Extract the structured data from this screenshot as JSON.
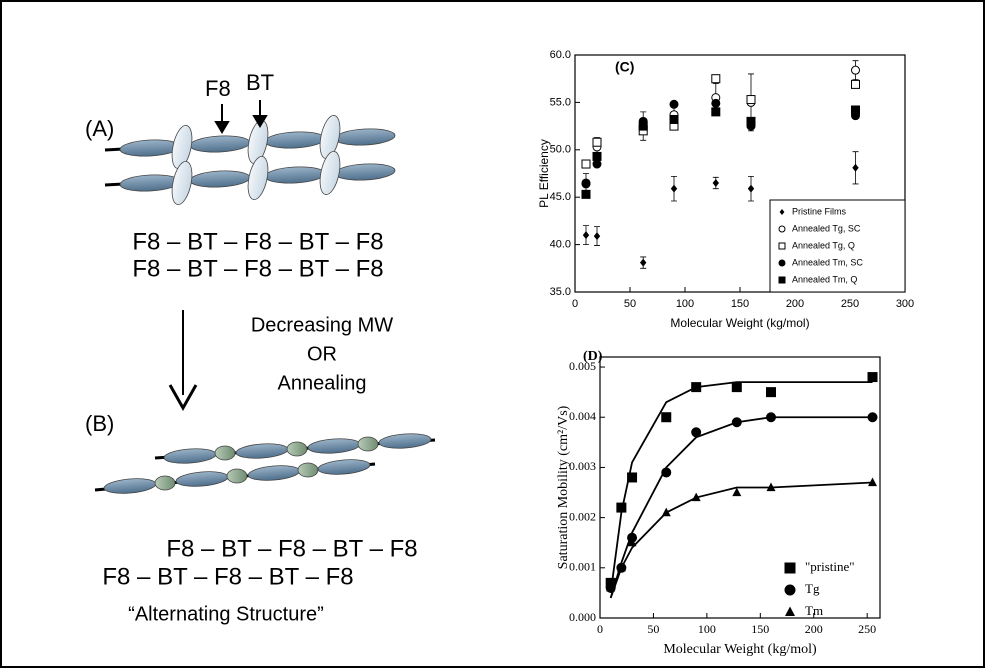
{
  "diagram": {
    "label_a": "(A)",
    "f8": "F8",
    "bt": "BT",
    "formula_a": [
      "F8 – BT – F8 – BT – F8",
      "F8 – BT – F8 – BT – F8"
    ],
    "arrow_text": [
      "Decreasing MW",
      "OR",
      "Annealing"
    ],
    "label_b": "(B)",
    "formula_b": [
      "F8 – BT – F8 – BT – F8",
      "F8 – BT – F8 – BT – F8"
    ],
    "caption": "“Alternating Structure”"
  },
  "chart_data": [
    {
      "type": "scatter",
      "title": "(C)",
      "xlabel": "Molecular Weight (kg/mol)",
      "ylabel": "PL Efficiency",
      "xlim": [
        0,
        300
      ],
      "ylim": [
        35,
        60
      ],
      "xticks": [
        0,
        50,
        100,
        150,
        200,
        250,
        300
      ],
      "yticks": [
        {
          "value": 35,
          "label": "35.0"
        },
        {
          "value": 40,
          "label": "40.0"
        },
        {
          "value": 45,
          "label": "45.0"
        },
        {
          "value": 50,
          "label": "50.0"
        },
        {
          "value": 55,
          "label": "55.0"
        },
        {
          "value": 60,
          "label": "60.0"
        }
      ],
      "x": [
        10,
        20,
        62,
        90,
        128,
        160,
        255
      ],
      "series": [
        {
          "name": "Pristine Films",
          "marker": "diamond",
          "color": "#000000",
          "values": [
            41.0,
            40.9,
            38.1,
            45.9,
            46.5,
            45.9,
            48.1
          ],
          "errors": [
            1.0,
            1.0,
            0.6,
            1.3,
            0.6,
            1.3,
            1.7
          ]
        },
        {
          "name": "Annealed Tg, SC",
          "marker": "circle-open",
          "color": "#000000",
          "values": [
            46.5,
            50.3,
            52.5,
            53.7,
            55.5,
            55.0,
            58.4
          ],
          "errors": [
            1.0,
            1.0,
            1.5,
            1.0,
            1.5,
            3.0,
            1.0
          ]
        },
        {
          "name": "Annealed Tg, Q",
          "marker": "square-open",
          "color": "#000000",
          "values": [
            48.5,
            50.8,
            52.0,
            52.5,
            57.5,
            55.3,
            56.9
          ]
        },
        {
          "name": "Annealed Tm, SC",
          "marker": "circle",
          "color": "#000000",
          "values": [
            46.4,
            48.5,
            53.0,
            54.8,
            54.9,
            52.5,
            53.6
          ]
        },
        {
          "name": "Annealed Tm, Q",
          "marker": "square",
          "color": "#000000",
          "values": [
            45.3,
            49.3,
            52.5,
            53.2,
            54.0,
            53.0,
            54.2
          ]
        }
      ]
    },
    {
      "type": "scatter",
      "title": "(D)",
      "xlabel": "Molecular Weight (kg/mol)",
      "ylabel": "Saturation Mobility (cm²/Vs)",
      "xlim": [
        0,
        262
      ],
      "ylim": [
        0,
        0.0052
      ],
      "xticks": [
        0,
        50,
        100,
        150,
        200,
        250
      ],
      "yticks": [
        {
          "value": 0,
          "label": "0.000"
        },
        {
          "value": 0.001,
          "label": "0.001"
        },
        {
          "value": 0.002,
          "label": "0.002"
        },
        {
          "value": 0.003,
          "label": "0.003"
        },
        {
          "value": 0.004,
          "label": "0.004"
        },
        {
          "value": 0.005,
          "label": "0.005"
        }
      ],
      "x": [
        10,
        20,
        30,
        62,
        90,
        128,
        160,
        255
      ],
      "series": [
        {
          "name": "\"pristine\"",
          "marker": "square",
          "color": "#000000",
          "values": [
            0.0007,
            0.0022,
            0.0028,
            0.004,
            0.0046,
            0.0046,
            0.0045,
            0.0048
          ],
          "fit": [
            0.0005,
            0.0021,
            0.0031,
            0.0043,
            0.0046,
            0.0047,
            0.0047,
            0.0047
          ]
        },
        {
          "name": "Tg",
          "marker": "circle",
          "color": "#000000",
          "values": [
            0.0006,
            0.001,
            0.0016,
            0.0029,
            0.0037,
            0.0039,
            0.004,
            0.004
          ],
          "fit": [
            0.0004,
            0.0011,
            0.0017,
            0.003,
            0.0036,
            0.0039,
            0.004,
            0.004
          ]
        },
        {
          "name": "Tm",
          "marker": "triangle",
          "color": "#000000",
          "values": [
            0.0006,
            0.001,
            0.0015,
            0.0021,
            0.0024,
            0.0025,
            0.0026,
            0.0027
          ],
          "fit": [
            0.0004,
            0.001,
            0.0014,
            0.0021,
            0.0024,
            0.0026,
            0.0026,
            0.0027
          ]
        }
      ]
    }
  ]
}
